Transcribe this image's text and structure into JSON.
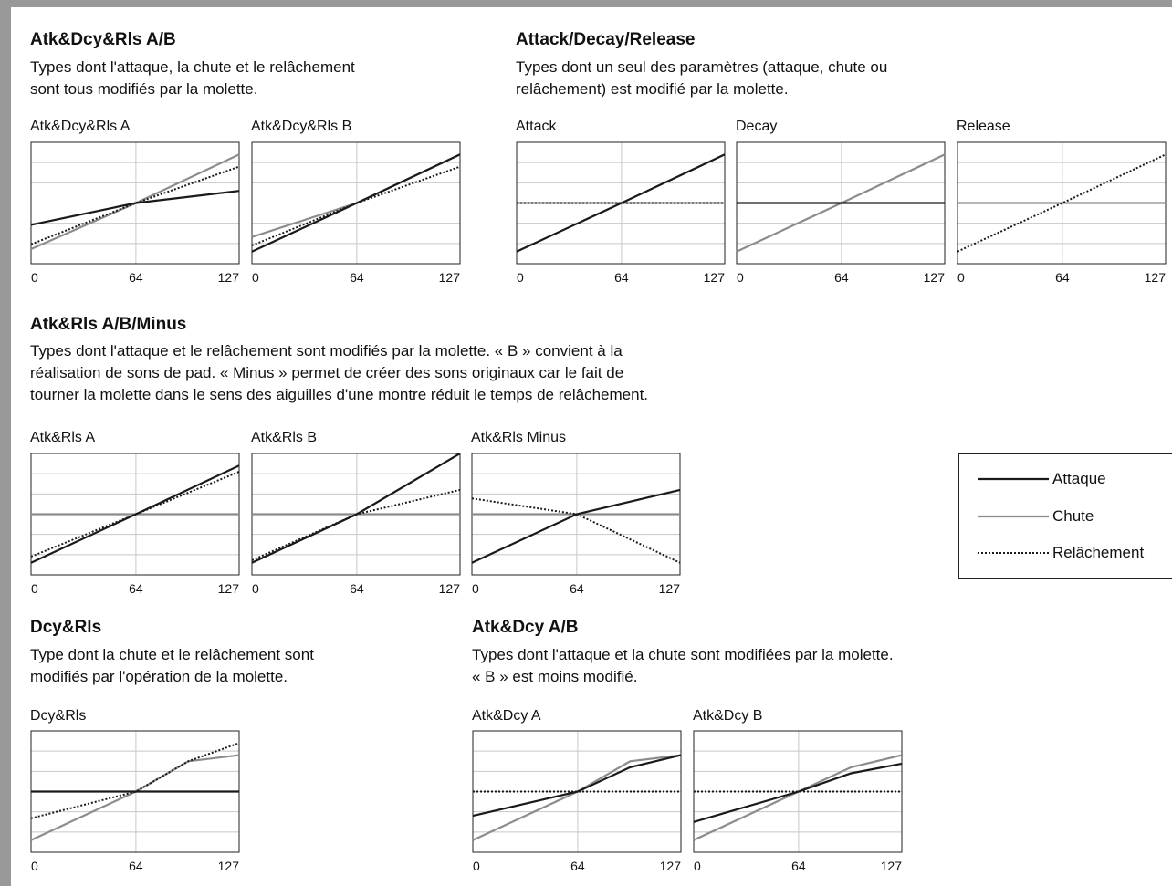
{
  "colors": {
    "attack": "#1a1a1a",
    "decay": "#8c8c8c",
    "release": "#1a1a1a",
    "grid": "#c8c8c8",
    "frame": "#999999"
  },
  "sections": [
    {
      "id": "atk-dcy-rls",
      "title": "Atk&Dcy&Rls A/B",
      "desc": [
        "Types dont l'attaque, la chute et le relâchement",
        "sont tous modifiés par la molette."
      ]
    },
    {
      "id": "attack-decay-release",
      "title": "Attack/Decay/Release",
      "desc": [
        "Types dont un seul des paramètres (attaque, chute ou",
        "relâchement) est modifié par la molette."
      ]
    },
    {
      "id": "atk-rls",
      "title": "Atk&Rls A/B/Minus",
      "desc": [
        "Types dont l'attaque et le relâchement sont modifiés par la molette. « B » convient à la",
        "réalisation de sons de pad. « Minus » permet de créer des sons originaux car le fait de",
        "tourner la molette dans le sens des aiguilles d'une montre réduit le temps de relâchement."
      ]
    },
    {
      "id": "dcy-rls",
      "title": "Dcy&Rls",
      "desc": [
        "Type dont la chute et le relâchement sont",
        "modifiés par l'opération de la molette."
      ]
    },
    {
      "id": "atk-dcy",
      "title": "Atk&Dcy A/B",
      "desc": [
        "Types dont l'attaque et la chute sont modifiées par la molette.",
        "« B » est moins modifié."
      ]
    }
  ],
  "legend": {
    "attack": "Attaque",
    "decay": "Chute",
    "release": "Relâchement"
  },
  "chart_data": [
    {
      "type": "line",
      "title": "Atk&Dcy&Rls A",
      "x_ticks": [
        "0",
        "64",
        "127"
      ],
      "xlim": [
        0,
        127
      ],
      "ylim": [
        0,
        1
      ],
      "series": [
        {
          "name": "Attaque",
          "x": [
            0,
            64,
            127
          ],
          "y": [
            0.32,
            0.5,
            0.6
          ]
        },
        {
          "name": "Chute",
          "x": [
            0,
            64,
            127
          ],
          "y": [
            0.12,
            0.5,
            0.9
          ]
        },
        {
          "name": "Relâchement",
          "x": [
            0,
            64,
            127
          ],
          "y": [
            0.16,
            0.5,
            0.8
          ]
        }
      ]
    },
    {
      "type": "line",
      "title": "Atk&Dcy&Rls B",
      "x_ticks": [
        "0",
        "64",
        "127"
      ],
      "xlim": [
        0,
        127
      ],
      "ylim": [
        0,
        1
      ],
      "series": [
        {
          "name": "Attaque",
          "x": [
            0,
            64,
            127
          ],
          "y": [
            0.1,
            0.5,
            0.9
          ]
        },
        {
          "name": "Chute",
          "x": [
            0,
            64,
            127
          ],
          "y": [
            0.22,
            0.5,
            0.9
          ]
        },
        {
          "name": "Relâchement",
          "x": [
            0,
            64,
            127
          ],
          "y": [
            0.15,
            0.5,
            0.8
          ]
        }
      ]
    },
    {
      "type": "line",
      "title": "Attack",
      "x_ticks": [
        "0",
        "64",
        "127"
      ],
      "xlim": [
        0,
        127
      ],
      "ylim": [
        0,
        1
      ],
      "series": [
        {
          "name": "Attaque",
          "x": [
            0,
            64,
            127
          ],
          "y": [
            0.1,
            0.5,
            0.9
          ]
        },
        {
          "name": "Chute",
          "x": [
            0,
            127
          ],
          "y": [
            0.5,
            0.5
          ]
        },
        {
          "name": "Relâchement",
          "x": [
            0,
            127
          ],
          "y": [
            0.5,
            0.5
          ]
        }
      ]
    },
    {
      "type": "line",
      "title": "Decay",
      "x_ticks": [
        "0",
        "64",
        "127"
      ],
      "xlim": [
        0,
        127
      ],
      "ylim": [
        0,
        1
      ],
      "series": [
        {
          "name": "Attaque",
          "x": [
            0,
            127
          ],
          "y": [
            0.5,
            0.5
          ]
        },
        {
          "name": "Chute",
          "x": [
            0,
            64,
            127
          ],
          "y": [
            0.1,
            0.5,
            0.9
          ]
        }
      ]
    },
    {
      "type": "line",
      "title": "Release",
      "x_ticks": [
        "0",
        "64",
        "127"
      ],
      "xlim": [
        0,
        127
      ],
      "ylim": [
        0,
        1
      ],
      "series": [
        {
          "name": "Chute",
          "x": [
            0,
            127
          ],
          "y": [
            0.5,
            0.5
          ]
        },
        {
          "name": "Relâchement",
          "x": [
            0,
            64,
            127
          ],
          "y": [
            0.1,
            0.5,
            0.9
          ]
        }
      ]
    },
    {
      "type": "line",
      "title": "Atk&Rls A",
      "x_ticks": [
        "0",
        "64",
        "127"
      ],
      "xlim": [
        0,
        127
      ],
      "ylim": [
        0,
        1
      ],
      "series": [
        {
          "name": "Attaque",
          "x": [
            0,
            64,
            127
          ],
          "y": [
            0.1,
            0.5,
            0.9
          ]
        },
        {
          "name": "Chute",
          "x": [
            0,
            127
          ],
          "y": [
            0.5,
            0.5
          ]
        },
        {
          "name": "Relâchement",
          "x": [
            0,
            64,
            127
          ],
          "y": [
            0.15,
            0.5,
            0.85
          ]
        }
      ]
    },
    {
      "type": "line",
      "title": "Atk&Rls B",
      "x_ticks": [
        "0",
        "64",
        "127"
      ],
      "xlim": [
        0,
        127
      ],
      "ylim": [
        0,
        1
      ],
      "series": [
        {
          "name": "Attaque",
          "x": [
            0,
            64,
            127
          ],
          "y": [
            0.1,
            0.5,
            1.0
          ]
        },
        {
          "name": "Chute",
          "x": [
            0,
            127
          ],
          "y": [
            0.5,
            0.5
          ]
        },
        {
          "name": "Relâchement",
          "x": [
            0,
            64,
            127
          ],
          "y": [
            0.12,
            0.5,
            0.7
          ]
        }
      ]
    },
    {
      "type": "line",
      "title": "Atk&Rls Minus",
      "x_ticks": [
        "0",
        "64",
        "127"
      ],
      "xlim": [
        0,
        127
      ],
      "ylim": [
        0,
        1
      ],
      "series": [
        {
          "name": "Attaque",
          "x": [
            0,
            64,
            127
          ],
          "y": [
            0.1,
            0.5,
            0.7
          ]
        },
        {
          "name": "Chute",
          "x": [
            0,
            127
          ],
          "y": [
            0.5,
            0.5
          ]
        },
        {
          "name": "Relâchement",
          "x": [
            0,
            64,
            127
          ],
          "y": [
            0.63,
            0.5,
            0.1
          ]
        }
      ]
    },
    {
      "type": "line",
      "title": "Dcy&Rls",
      "x_ticks": [
        "0",
        "64",
        "127"
      ],
      "xlim": [
        0,
        127
      ],
      "ylim": [
        0,
        1
      ],
      "series": [
        {
          "name": "Attaque",
          "x": [
            0,
            127
          ],
          "y": [
            0.5,
            0.5
          ]
        },
        {
          "name": "Chute",
          "x": [
            0,
            64,
            96,
            127
          ],
          "y": [
            0.1,
            0.5,
            0.75,
            0.8
          ]
        },
        {
          "name": "Relâchement",
          "x": [
            0,
            64,
            96,
            127
          ],
          "y": [
            0.28,
            0.5,
            0.75,
            0.9
          ]
        }
      ]
    },
    {
      "type": "line",
      "title": "Atk&Dcy A",
      "x_ticks": [
        "0",
        "64",
        "127"
      ],
      "xlim": [
        0,
        127
      ],
      "ylim": [
        0,
        1
      ],
      "series": [
        {
          "name": "Attaque",
          "x": [
            0,
            64,
            96,
            127
          ],
          "y": [
            0.3,
            0.5,
            0.7,
            0.8
          ]
        },
        {
          "name": "Chute",
          "x": [
            0,
            64,
            96,
            127
          ],
          "y": [
            0.1,
            0.5,
            0.75,
            0.8
          ]
        },
        {
          "name": "Relâchement",
          "x": [
            0,
            127
          ],
          "y": [
            0.5,
            0.5
          ]
        }
      ]
    },
    {
      "type": "line",
      "title": "Atk&Dcy B",
      "x_ticks": [
        "0",
        "64",
        "127"
      ],
      "xlim": [
        0,
        127
      ],
      "ylim": [
        0,
        1
      ],
      "series": [
        {
          "name": "Attaque",
          "x": [
            0,
            64,
            96,
            127
          ],
          "y": [
            0.25,
            0.5,
            0.65,
            0.73
          ]
        },
        {
          "name": "Chute",
          "x": [
            0,
            64,
            96,
            127
          ],
          "y": [
            0.1,
            0.5,
            0.7,
            0.8
          ]
        },
        {
          "name": "Relâchement",
          "x": [
            0,
            127
          ],
          "y": [
            0.5,
            0.5
          ]
        }
      ]
    }
  ]
}
